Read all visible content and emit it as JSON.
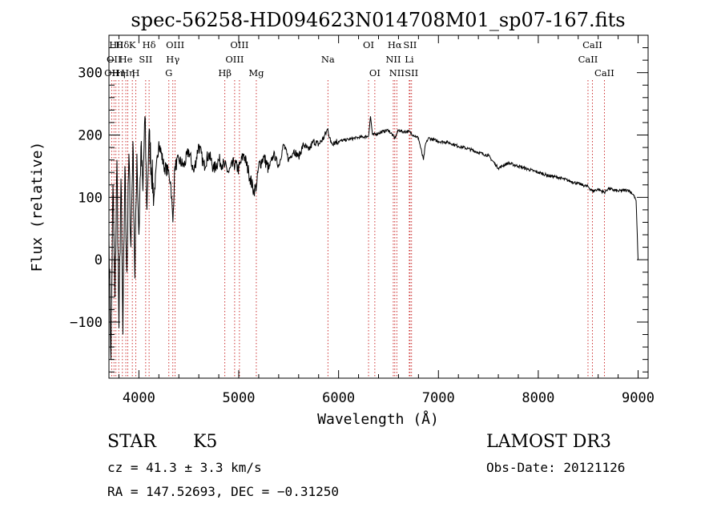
{
  "chart_data": {
    "type": "line",
    "title": "spec-56258-HD094623N014708M01_sp07-167.fits",
    "xlabel": "Wavelength (Å)",
    "ylabel": "Flux (relative)",
    "xlim": [
      3700,
      9100
    ],
    "ylim": [
      -190,
      360
    ],
    "x_ticks": [
      4000,
      5000,
      6000,
      7000,
      8000,
      9000
    ],
    "x_tick_labels": [
      "4000",
      "5000",
      "6000",
      "7000",
      "8000",
      "9000"
    ],
    "y_ticks": [
      -100,
      0,
      100,
      200,
      300
    ],
    "y_tick_labels": [
      "−100",
      "0",
      "100",
      "200",
      "300"
    ],
    "series": [
      {
        "name": "spectrum",
        "color": "#000000",
        "points": [
          [
            3700,
            40
          ],
          [
            3720,
            -160
          ],
          [
            3740,
            120
          ],
          [
            3760,
            -60
          ],
          [
            3780,
            160
          ],
          [
            3800,
            -110
          ],
          [
            3820,
            130
          ],
          [
            3840,
            -120
          ],
          [
            3860,
            150
          ],
          [
            3880,
            -20
          ],
          [
            3900,
            170
          ],
          [
            3920,
            20
          ],
          [
            3940,
            190
          ],
          [
            3960,
            -30
          ],
          [
            3980,
            170
          ],
          [
            4000,
            40
          ],
          [
            4020,
            180
          ],
          [
            4040,
            110
          ],
          [
            4060,
            230
          ],
          [
            4080,
            80
          ],
          [
            4100,
            200
          ],
          [
            4150,
            100
          ],
          [
            4200,
            190
          ],
          [
            4250,
            150
          ],
          [
            4300,
            140
          ],
          [
            4320,
            120
          ],
          [
            4340,
            60
          ],
          [
            4360,
            150
          ],
          [
            4400,
            160
          ],
          [
            4450,
            150
          ],
          [
            4500,
            175
          ],
          [
            4550,
            140
          ],
          [
            4600,
            185
          ],
          [
            4650,
            150
          ],
          [
            4700,
            170
          ],
          [
            4750,
            145
          ],
          [
            4800,
            160
          ],
          [
            4860,
            150
          ],
          [
            4900,
            140
          ],
          [
            4950,
            155
          ],
          [
            5000,
            145
          ],
          [
            5050,
            170
          ],
          [
            5100,
            140
          ],
          [
            5150,
            110
          ],
          [
            5180,
            120
          ],
          [
            5200,
            150
          ],
          [
            5250,
            165
          ],
          [
            5300,
            145
          ],
          [
            5350,
            170
          ],
          [
            5400,
            150
          ],
          [
            5450,
            185
          ],
          [
            5500,
            160
          ],
          [
            5550,
            175
          ],
          [
            5600,
            165
          ],
          [
            5650,
            185
          ],
          [
            5700,
            175
          ],
          [
            5750,
            190
          ],
          [
            5800,
            185
          ],
          [
            5850,
            195
          ],
          [
            5893,
            210
          ],
          [
            5920,
            188
          ],
          [
            6000,
            190
          ],
          [
            6100,
            193
          ],
          [
            6200,
            196
          ],
          [
            6300,
            198
          ],
          [
            6320,
            230
          ],
          [
            6340,
            200
          ],
          [
            6400,
            203
          ],
          [
            6450,
            206
          ],
          [
            6500,
            208
          ],
          [
            6563,
            195
          ],
          [
            6600,
            208
          ],
          [
            6650,
            205
          ],
          [
            6700,
            206
          ],
          [
            6750,
            200
          ],
          [
            6800,
            195
          ],
          [
            6850,
            160
          ],
          [
            6870,
            185
          ],
          [
            6900,
            195
          ],
          [
            7000,
            190
          ],
          [
            7100,
            188
          ],
          [
            7200,
            182
          ],
          [
            7300,
            178
          ],
          [
            7400,
            172
          ],
          [
            7500,
            167
          ],
          [
            7600,
            147
          ],
          [
            7700,
            155
          ],
          [
            7800,
            150
          ],
          [
            7900,
            145
          ],
          [
            8000,
            140
          ],
          [
            8100,
            135
          ],
          [
            8200,
            132
          ],
          [
            8300,
            127
          ],
          [
            8400,
            122
          ],
          [
            8500,
            117
          ],
          [
            8542,
            110
          ],
          [
            8600,
            113
          ],
          [
            8662,
            108
          ],
          [
            8700,
            114
          ],
          [
            8800,
            110
          ],
          [
            8900,
            112
          ],
          [
            8950,
            105
          ],
          [
            8980,
            95
          ],
          [
            9000,
            0
          ]
        ]
      }
    ],
    "lines": [
      {
        "wavelength": 3727,
        "row": 2,
        "label": "OII"
      },
      {
        "wavelength": 3750,
        "row": 1,
        "label": "OII"
      },
      {
        "wavelength": 3770,
        "row": 0,
        "label": "Hθ"
      },
      {
        "wavelength": 3798,
        "row": 2,
        "label": "Hη"
      },
      {
        "wavelength": 3835,
        "row": 0,
        "label": "Hδ"
      },
      {
        "wavelength": 3869,
        "row": 1,
        "label": "He"
      },
      {
        "wavelength": 3889,
        "row": 2,
        "label": "Hη"
      },
      {
        "wavelength": 3934,
        "row": 0,
        "label": "K"
      },
      {
        "wavelength": 3968,
        "row": 2,
        "label": "H"
      },
      {
        "wavelength": 4068,
        "row": 1,
        "label": "SII"
      },
      {
        "wavelength": 4102,
        "row": 0,
        "label": "Hδ"
      },
      {
        "wavelength": 4300,
        "row": 2,
        "label": "G"
      },
      {
        "wavelength": 4340,
        "row": 1,
        "label": "Hγ"
      },
      {
        "wavelength": 4363,
        "row": 0,
        "label": "OIII"
      },
      {
        "wavelength": 4861,
        "row": 2,
        "label": "Hβ"
      },
      {
        "wavelength": 4959,
        "row": 1,
        "label": "OIII"
      },
      {
        "wavelength": 5007,
        "row": 0,
        "label": "OIII"
      },
      {
        "wavelength": 5176,
        "row": 2,
        "label": "Mg"
      },
      {
        "wavelength": 5893,
        "row": 1,
        "label": "Na"
      },
      {
        "wavelength": 6300,
        "row": 0,
        "label": "OI"
      },
      {
        "wavelength": 6363,
        "row": 2,
        "label": "OI"
      },
      {
        "wavelength": 6548,
        "row": 1,
        "label": "NII"
      },
      {
        "wavelength": 6563,
        "row": 0,
        "label": "Hα"
      },
      {
        "wavelength": 6583,
        "row": 2,
        "label": "NII"
      },
      {
        "wavelength": 6708,
        "row": 1,
        "label": "Li"
      },
      {
        "wavelength": 6716,
        "row": 0,
        "label": "SII"
      },
      {
        "wavelength": 6731,
        "row": 2,
        "label": "SII"
      },
      {
        "wavelength": 8498,
        "row": 1,
        "label": "CaII"
      },
      {
        "wavelength": 8542,
        "row": 0,
        "label": "CaII"
      },
      {
        "wavelength": 8662,
        "row": 2,
        "label": "CaII"
      }
    ],
    "line_color": "#c00000"
  },
  "info": {
    "class": "STAR",
    "subclass": "K5",
    "survey": "LAMOST DR3",
    "redshift": "cz = 41.3 ± 3.3 km/s",
    "obs_date": "Obs-Date: 20121126",
    "coords": "RA = 147.52693, DEC =  −0.31250"
  }
}
